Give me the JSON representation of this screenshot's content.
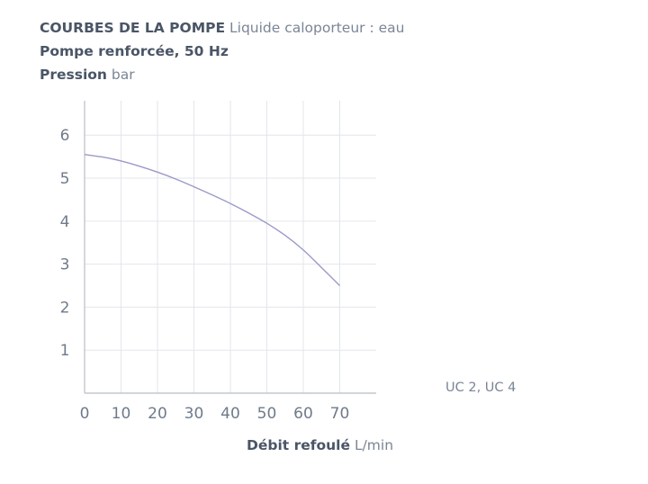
{
  "header": {
    "title_bold": "COURBES DE LA POMPE",
    "title_light": "Liquide caloporteur : eau",
    "subtitle": "Pompe renforcée, 50 Hz",
    "ylabel_bold": "Pression",
    "ylabel_light": "bar"
  },
  "xlabel": {
    "bold": "Débit refoulé",
    "light": "L/min"
  },
  "legend": {
    "label": "UC 2, UC 4"
  },
  "colors": {
    "curve": "#9a9ac8",
    "grid": "#e3e6ea",
    "axis": "#b8bec6"
  },
  "chart_data": {
    "type": "line",
    "title": "COURBES DE LA POMPE Liquide caloporteur : eau",
    "subtitle": "Pompe renforcée, 50 Hz",
    "xlabel": "Débit refoulé L/min",
    "ylabel": "Pression bar",
    "xlim": [
      0,
      80
    ],
    "ylim": [
      0,
      6.8
    ],
    "xticks": [
      0,
      10,
      20,
      30,
      40,
      50,
      60,
      70
    ],
    "yticks": [
      1,
      2,
      3,
      4,
      5,
      6
    ],
    "grid": true,
    "legend_position": "right",
    "series": [
      {
        "name": "UC 2, UC 4",
        "x": [
          0,
          5,
          10,
          15,
          20,
          25,
          30,
          35,
          40,
          45,
          50,
          55,
          60,
          65,
          70
        ],
        "y": [
          5.55,
          5.49,
          5.4,
          5.28,
          5.14,
          4.98,
          4.8,
          4.61,
          4.41,
          4.19,
          3.95,
          3.67,
          3.33,
          2.92,
          2.5
        ]
      }
    ]
  }
}
